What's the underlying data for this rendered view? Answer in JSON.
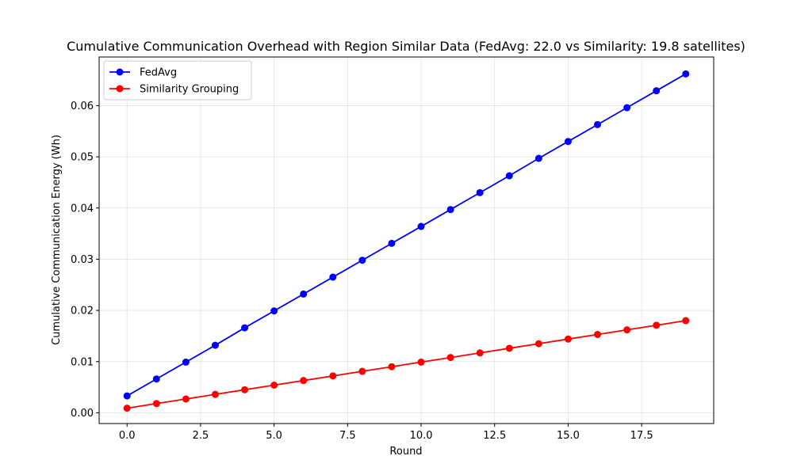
{
  "chart_data": {
    "type": "line",
    "title": "Cumulative Communication Overhead with Region Similar Data (FedAvg: 22.0 vs Similarity: 19.8 satellites)",
    "xlabel": "Round",
    "ylabel": "Cumulative Communication Energy (Wh)",
    "xlim": [
      -0.95,
      19.95
    ],
    "ylim": [
      -0.0021,
      0.0695
    ],
    "xticks": [
      0,
      2.5,
      5,
      7.5,
      10,
      12.5,
      15,
      17.5
    ],
    "xtick_labels": [
      "0.0",
      "2.5",
      "5.0",
      "7.5",
      "10.0",
      "12.5",
      "15.0",
      "17.5"
    ],
    "yticks": [
      0,
      0.01,
      0.02,
      0.03,
      0.04,
      0.05,
      0.06
    ],
    "ytick_labels": [
      "0.00",
      "0.01",
      "0.02",
      "0.03",
      "0.04",
      "0.05",
      "0.06"
    ],
    "grid": true,
    "legend_position": "top-left",
    "x": [
      0,
      1,
      2,
      3,
      4,
      5,
      6,
      7,
      8,
      9,
      10,
      11,
      12,
      13,
      14,
      15,
      16,
      17,
      18,
      19
    ],
    "series": [
      {
        "name": "FedAvg",
        "color": "#0000ff",
        "marker": "circle",
        "values": [
          0.0033,
          0.0066,
          0.0099,
          0.0132,
          0.0166,
          0.0199,
          0.0232,
          0.0265,
          0.0298,
          0.0331,
          0.0364,
          0.0397,
          0.043,
          0.0463,
          0.0497,
          0.053,
          0.0563,
          0.0596,
          0.0629,
          0.0662
        ]
      },
      {
        "name": "Similarity Grouping",
        "color": "#ff0000",
        "marker": "circle",
        "values": [
          0.0009,
          0.0018,
          0.0027,
          0.0036,
          0.0045,
          0.0054,
          0.0063,
          0.0072,
          0.0081,
          0.009,
          0.0099,
          0.0108,
          0.0117,
          0.0126,
          0.0135,
          0.0144,
          0.0153,
          0.0162,
          0.0171,
          0.018
        ]
      }
    ]
  }
}
